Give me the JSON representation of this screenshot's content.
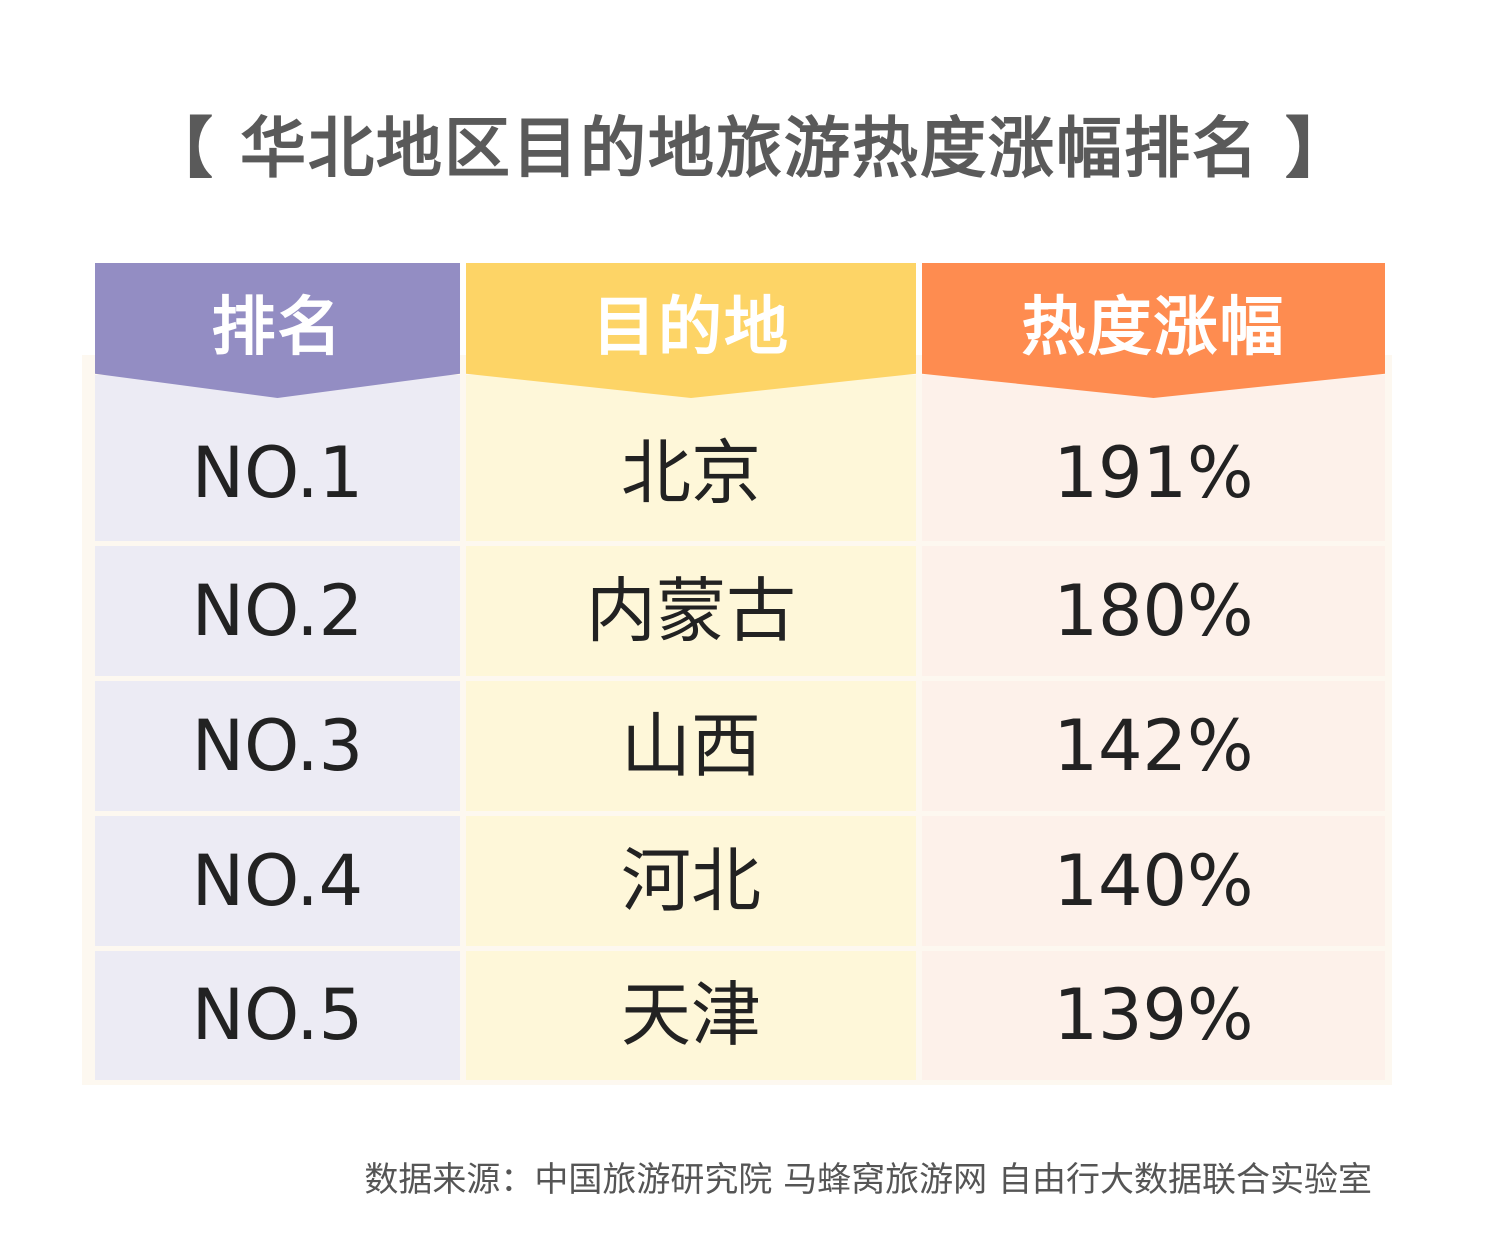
{
  "header": {
    "title": "【 华北地区目的地旅游热度涨幅排名 】"
  },
  "table": {
    "columns": [
      "排名",
      "目的地",
      "热度涨幅"
    ],
    "rows": [
      [
        "NO.1",
        "北京",
        "191%"
      ],
      [
        "NO.2",
        "内蒙古",
        "180%"
      ],
      [
        "NO.3",
        "山西",
        "142%"
      ],
      [
        "NO.4",
        "河北",
        "140%"
      ],
      [
        "NO.5",
        "天津",
        "139%"
      ]
    ]
  },
  "footer": {
    "source": "数据来源：中国旅游研究院 马蜂窝旅游网 自由行大数据联合实验室"
  }
}
